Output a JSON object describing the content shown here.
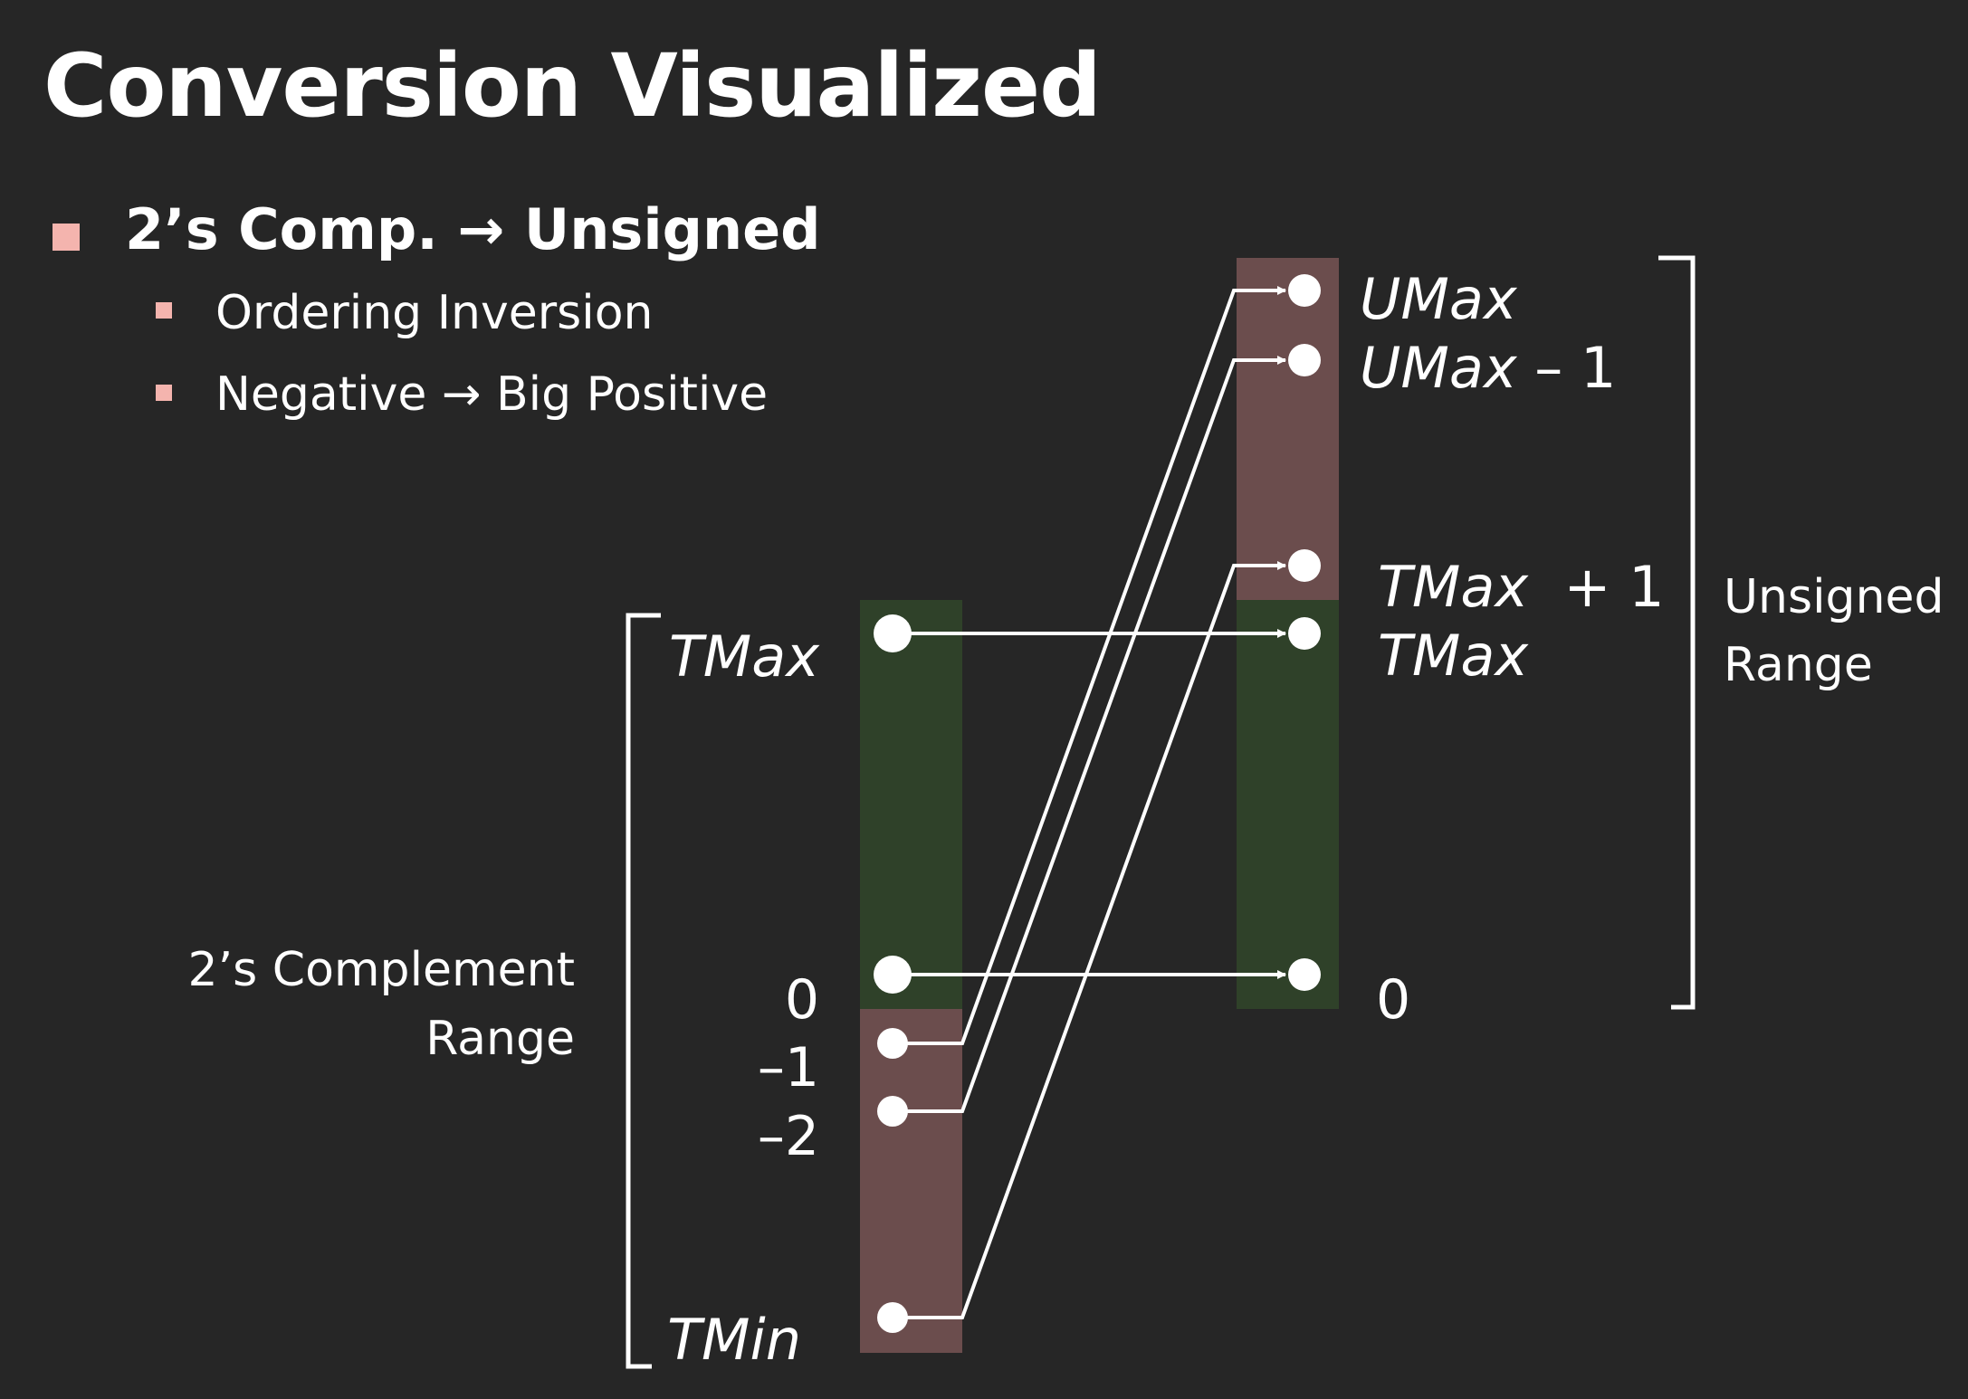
{
  "slide": {
    "title": "Conversion Visualized",
    "bullet_main": "2’s Comp. → Unsigned",
    "sub_bullets": [
      "Ordering Inversion",
      "Negative → Big Positive"
    ]
  },
  "diagram": {
    "left_range_label": [
      "2’s Complement",
      "Range"
    ],
    "right_range_label": [
      "Unsigned",
      "Range"
    ],
    "left_labels": {
      "tmax": "TMax",
      "zero": "0",
      "minus1": "–1",
      "minus2": "–2",
      "tmin": "TMin"
    },
    "right_labels": {
      "umax": "UMax",
      "umax_minus1_var": "UMax",
      "umax_minus1_suffix": " – 1",
      "tmax_plus1_var": "TMax",
      "tmax_plus1_suffix": "  + 1",
      "tmax": "TMax",
      "zero": "0"
    },
    "colors": {
      "background": "#262626",
      "negative_region": "#6b4d4d",
      "nonnegative_region": "#2f4129",
      "bullet": "#f4b4ae",
      "line": "#ffffff"
    }
  }
}
